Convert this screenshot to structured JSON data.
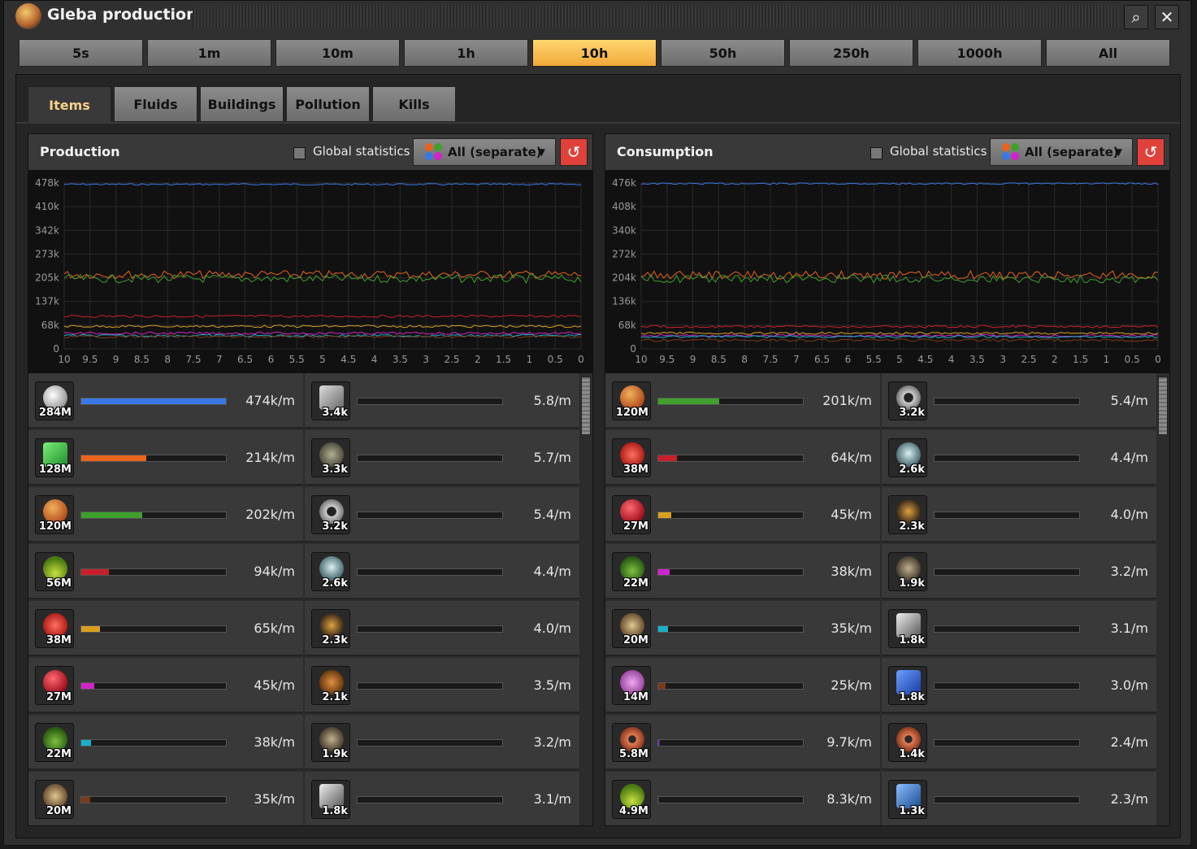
{
  "window": {
    "title": "Gleba production",
    "search_icon": "⌕",
    "close_icon": "✕"
  },
  "time_buttons": [
    "5s",
    "1m",
    "10m",
    "1h",
    "10h",
    "50h",
    "250h",
    "1000h",
    "All"
  ],
  "active_time": "10h",
  "tabs": [
    "Items",
    "Fluids",
    "Buildings",
    "Pollution",
    "Kills"
  ],
  "active_tab": "Items",
  "colors": {
    "blue": "#3a78e6",
    "orange": "#e8641c",
    "green": "#3fa02c",
    "red": "#c8202a",
    "yellow": "#d9a020",
    "magenta": "#d025c8",
    "cyan": "#1ab0c8",
    "brown": "#7a3a1a",
    "purple": "#6a2aa8"
  },
  "production": {
    "title": "Production",
    "global_label": "Global statistics",
    "dropdown_label": "All (separate)",
    "y_ticks": [
      "478k",
      "410k",
      "342k",
      "273k",
      "205k",
      "137k",
      "68k",
      "0"
    ],
    "x_ticks": [
      "10",
      "9.5",
      "9",
      "8.5",
      "8",
      "7.5",
      "7",
      "6.5",
      "6",
      "5.5",
      "5",
      "4.5",
      "4",
      "3.5",
      "3",
      "2.5",
      "2",
      "1.5",
      "1",
      "0.5",
      "0"
    ],
    "rows": [
      [
        {
          "icon": "stone",
          "count": "284M",
          "rate": "474k/m",
          "fill": 1.0,
          "color": "#3a78e6"
        },
        {
          "icon": "tool",
          "count": "3.4k",
          "rate": "5.8/m",
          "fill": 0
        }
      ],
      [
        {
          "icon": "crystal",
          "count": "128M",
          "rate": "214k/m",
          "fill": 0.45,
          "color": "#e8641c"
        },
        {
          "icon": "ore",
          "count": "3.3k",
          "rate": "5.7/m",
          "fill": 0
        }
      ],
      [
        {
          "icon": "fruit",
          "count": "120M",
          "rate": "202k/m",
          "fill": 0.42,
          "color": "#3fa02c"
        },
        {
          "icon": "gear",
          "count": "3.2k",
          "rate": "5.4/m",
          "fill": 0
        }
      ],
      [
        {
          "icon": "flask",
          "count": "56M",
          "rate": "94k/m",
          "fill": 0.19,
          "color": "#c8202a"
        },
        {
          "icon": "saucer",
          "count": "2.6k",
          "rate": "4.4/m",
          "fill": 0
        }
      ],
      [
        {
          "icon": "coral",
          "count": "38M",
          "rate": "65k/m",
          "fill": 0.13,
          "color": "#d9a020"
        },
        {
          "icon": "robot",
          "count": "2.3k",
          "rate": "4.0/m",
          "fill": 0
        }
      ],
      [
        {
          "icon": "redball",
          "count": "27M",
          "rate": "45k/m",
          "fill": 0.09,
          "color": "#d025c8"
        },
        {
          "icon": "logs",
          "count": "2.1k",
          "rate": "3.5/m",
          "fill": 0
        }
      ],
      [
        {
          "icon": "shell",
          "count": "22M",
          "rate": "38k/m",
          "fill": 0.07,
          "color": "#1ab0c8"
        },
        {
          "icon": "turret",
          "count": "1.9k",
          "rate": "3.2/m",
          "fill": 0
        }
      ],
      [
        {
          "icon": "rocks",
          "count": "20M",
          "rate": "35k/m",
          "fill": 0.06,
          "color": "#7a3a1a"
        },
        {
          "icon": "rail",
          "count": "1.8k",
          "rate": "3.1/m",
          "fill": 0
        }
      ]
    ]
  },
  "consumption": {
    "title": "Consumption",
    "global_label": "Global statistics",
    "dropdown_label": "All (separate)",
    "y_ticks": [
      "476k",
      "408k",
      "340k",
      "272k",
      "204k",
      "136k",
      "68k",
      "0"
    ],
    "x_ticks": [
      "10",
      "9.5",
      "9",
      "8.5",
      "8",
      "7.5",
      "7",
      "6.5",
      "6",
      "5.5",
      "5",
      "4.5",
      "4",
      "3.5",
      "3",
      "2.5",
      "2",
      "1.5",
      "1",
      "0.5",
      "0"
    ],
    "rows": [
      [
        {
          "icon": "fruit",
          "count": "120M",
          "rate": "201k/m",
          "fill": 0.42,
          "color": "#3fa02c"
        },
        {
          "icon": "gear",
          "count": "3.2k",
          "rate": "5.4/m",
          "fill": 0
        }
      ],
      [
        {
          "icon": "coral",
          "count": "38M",
          "rate": "64k/m",
          "fill": 0.13,
          "color": "#c8202a"
        },
        {
          "icon": "saucer",
          "count": "2.6k",
          "rate": "4.4/m",
          "fill": 0
        }
      ],
      [
        {
          "icon": "redball",
          "count": "27M",
          "rate": "45k/m",
          "fill": 0.09,
          "color": "#d9a020"
        },
        {
          "icon": "robot",
          "count": "2.3k",
          "rate": "4.0/m",
          "fill": 0
        }
      ],
      [
        {
          "icon": "shell",
          "count": "22M",
          "rate": "38k/m",
          "fill": 0.08,
          "color": "#d025c8"
        },
        {
          "icon": "turret",
          "count": "1.9k",
          "rate": "3.2/m",
          "fill": 0
        }
      ],
      [
        {
          "icon": "rocks",
          "count": "20M",
          "rate": "35k/m",
          "fill": 0.07,
          "color": "#1ab0c8"
        },
        {
          "icon": "rail",
          "count": "1.8k",
          "rate": "3.1/m",
          "fill": 0
        }
      ],
      [
        {
          "icon": "brain",
          "count": "14M",
          "rate": "25k/m",
          "fill": 0.05,
          "color": "#7a3a1a"
        },
        {
          "icon": "circuit",
          "count": "1.8k",
          "rate": "3.0/m",
          "fill": 0
        }
      ],
      [
        {
          "icon": "coil",
          "count": "5.8M",
          "rate": "9.7k/m",
          "fill": 0.01,
          "color": "#6a2aa8"
        },
        {
          "icon": "coil",
          "count": "1.4k",
          "rate": "2.4/m",
          "fill": 0
        }
      ],
      [
        {
          "icon": "flask",
          "count": "4.9M",
          "rate": "8.3k/m",
          "fill": 0.005,
          "color": "#3a3a3a"
        },
        {
          "icon": "pipe",
          "count": "1.3k",
          "rate": "2.3/m",
          "fill": 0
        }
      ]
    ]
  },
  "chart_data": [
    {
      "type": "line",
      "ylim": [
        0,
        478000
      ],
      "xlim": [
        10,
        0
      ],
      "grid": true,
      "series": [
        {
          "values": [
            474000
          ],
          "color": "#3a78e6"
        },
        {
          "values": [
            214000
          ],
          "color": "#e8641c"
        },
        {
          "values": [
            202000
          ],
          "color": "#3fa02c"
        },
        {
          "values": [
            94000
          ],
          "color": "#c8202a"
        },
        {
          "values": [
            65000
          ],
          "color": "#d9a020"
        },
        {
          "values": [
            45000
          ],
          "color": "#d025c8"
        },
        {
          "values": [
            38000
          ],
          "color": "#1ab0c8"
        },
        {
          "values": [
            35000
          ],
          "color": "#7a3a1a"
        }
      ]
    },
    {
      "type": "line",
      "ylim": [
        0,
        476000
      ],
      "xlim": [
        10,
        0
      ],
      "grid": true,
      "series": [
        {
          "values": [
            474000
          ],
          "color": "#3a78e6"
        },
        {
          "values": [
            212000
          ],
          "color": "#e8641c"
        },
        {
          "values": [
            201000
          ],
          "color": "#3fa02c"
        },
        {
          "values": [
            64000
          ],
          "color": "#c8202a"
        },
        {
          "values": [
            45000
          ],
          "color": "#d9a020"
        },
        {
          "values": [
            38000
          ],
          "color": "#d025c8"
        },
        {
          "values": [
            35000
          ],
          "color": "#1ab0c8"
        },
        {
          "values": [
            25000
          ],
          "color": "#7a3a1a"
        }
      ]
    }
  ]
}
